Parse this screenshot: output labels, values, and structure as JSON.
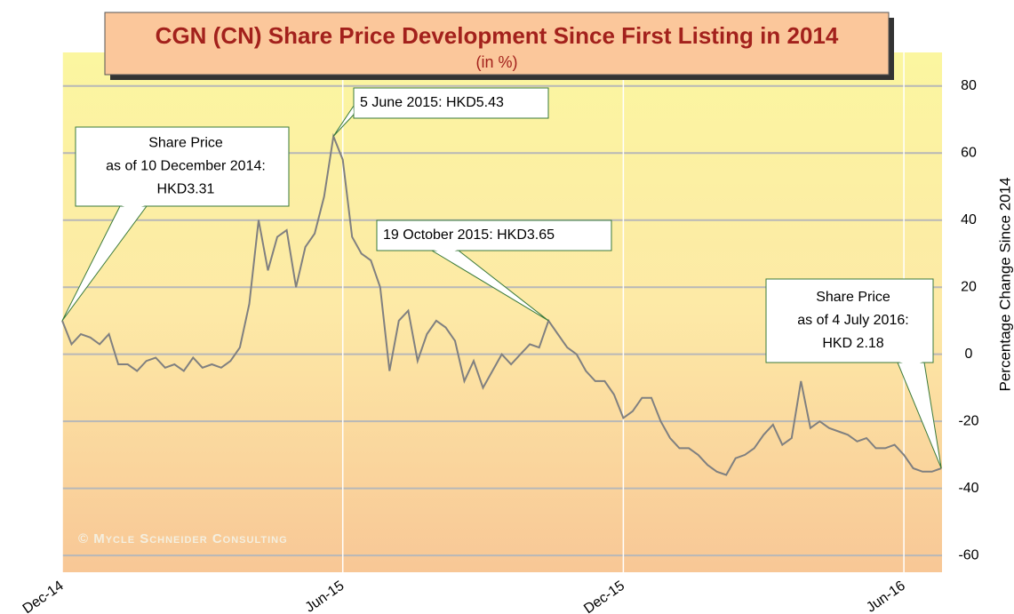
{
  "chart_data": {
    "type": "line",
    "title": "CGN (CN) Share Price Development Since First Listing in 2014",
    "subtitle": "(in %)",
    "y_label": "Percentage Change Since  2014",
    "credit": "© Mycle Schneider Consulting",
    "categories": [
      "Dec-14",
      null,
      null,
      null,
      null,
      null,
      null,
      null,
      null,
      null,
      null,
      null,
      null,
      null,
      null,
      null,
      null,
      null,
      null,
      null,
      null,
      null,
      null,
      null,
      null,
      null,
      null,
      null,
      null,
      null,
      "Jun-15",
      null,
      null,
      null,
      null,
      null,
      null,
      null,
      null,
      null,
      null,
      null,
      null,
      null,
      null,
      null,
      null,
      null,
      null,
      null,
      null,
      null,
      null,
      null,
      null,
      null,
      null,
      null,
      null,
      null,
      "Dec-15",
      null,
      null,
      null,
      null,
      null,
      null,
      null,
      null,
      null,
      null,
      null,
      null,
      null,
      null,
      null,
      null,
      null,
      null,
      null,
      null,
      null,
      null,
      null,
      null,
      null,
      null,
      null,
      null,
      null,
      "Jun-16",
      null,
      null,
      null,
      null
    ],
    "series": [
      {
        "name": "CGN",
        "color": "#808080",
        "values": [
          10,
          3,
          6,
          5,
          3,
          6,
          -3,
          -3,
          -5,
          -2,
          -1,
          -4,
          -3,
          -5,
          -1,
          -4,
          -3,
          -4,
          -2,
          2,
          15,
          40,
          25,
          35,
          37,
          20,
          32,
          36,
          47,
          65,
          58,
          35,
          30,
          28,
          20,
          -5,
          10,
          13,
          -2,
          6,
          10,
          8,
          4,
          -8,
          -2,
          -10,
          -5,
          0,
          -3,
          0,
          3,
          2,
          10,
          6,
          2,
          0,
          -5,
          -8,
          -8,
          -12,
          -19,
          -17,
          -13,
          -13,
          -20,
          -25,
          -28,
          -28,
          -30,
          -33,
          -35,
          -36,
          -31,
          -30,
          -28,
          -24,
          -21,
          -27,
          -25,
          -8,
          -22,
          -20,
          -22,
          -23,
          -24,
          -26,
          -25,
          -28,
          -28,
          -27,
          -30,
          -34,
          -35,
          -35,
          -34
        ]
      }
    ],
    "ylim": [
      -65,
      90
    ],
    "yticks": [
      80,
      60,
      40,
      20,
      0,
      -20,
      -40,
      -60
    ],
    "grid": true,
    "annotations": [
      {
        "lines": [
          "Share Price",
          "as of 10 December 2014:",
          "HKD3.31"
        ],
        "index": 0
      },
      {
        "lines": [
          "5 June 2015: HKD5.43"
        ],
        "index": 29
      },
      {
        "lines": [
          "19 October 2015: HKD3.65"
        ],
        "index": 52
      },
      {
        "lines": [
          "Share Price",
          "as of 4 July 2016:",
          "HKD 2.18"
        ],
        "index": 94
      }
    ]
  }
}
